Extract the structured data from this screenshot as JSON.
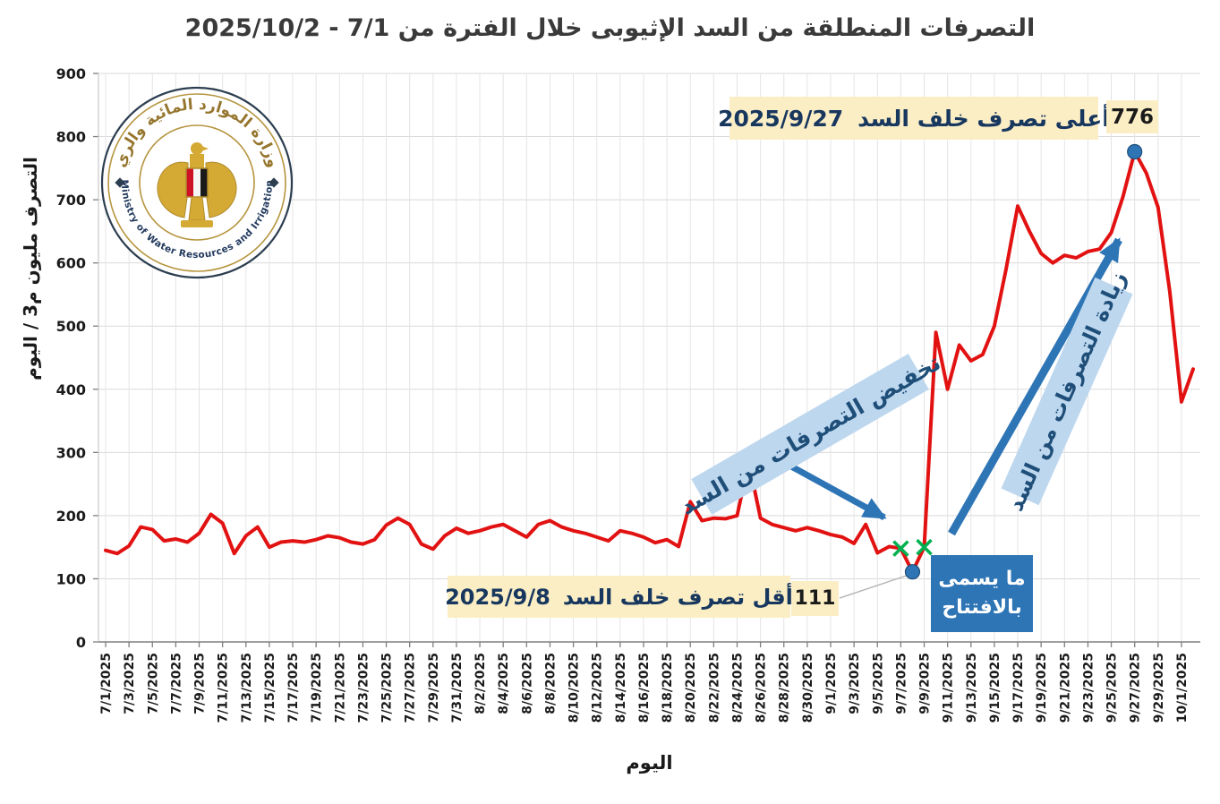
{
  "page": {
    "title": "التصرفات المنطلقة من السد الإثيوبى خلال الفترة من 7/1 - 2025/10/2"
  },
  "logo": {
    "arabic_text": "وزارة الموارد المائية والري",
    "english_text": "Ministry of Water Resources and Irrigation"
  },
  "annotations": {
    "max_label": "أعلى تصرف خلف السد",
    "max_date": "2025/9/27",
    "max_value": "776",
    "min_label": "أقل تصرف خلف السد",
    "min_date": "2025/9/8",
    "min_value": "111",
    "decrease_label": "تخفيض التصرفات من السد",
    "increase_label": "زيادة التصرفات من السد",
    "opening_label_line1": "ما يسمى",
    "opening_label_line2": "بالافتتاح"
  },
  "chart_data": {
    "type": "line",
    "title": "التصرفات المنطلقة من السد الإثيوبى خلال الفترة من 7/1 - 2025/10/2",
    "xlabel": "اليوم",
    "ylabel": "التصرف مليون م3 / اليوم",
    "ylim": [
      0,
      900
    ],
    "ytick_step": 100,
    "grid": true,
    "legend": "none",
    "line_color": "#E21212",
    "marker_color": "#2E75B6",
    "green_x_color": "#00B050",
    "arrow_color": "#2E75B6",
    "x": [
      "7/1/2025",
      "7/2/2025",
      "7/3/2025",
      "7/4/2025",
      "7/5/2025",
      "7/6/2025",
      "7/7/2025",
      "7/8/2025",
      "7/9/2025",
      "7/10/2025",
      "7/11/2025",
      "7/12/2025",
      "7/13/2025",
      "7/14/2025",
      "7/15/2025",
      "7/16/2025",
      "7/17/2025",
      "7/18/2025",
      "7/19/2025",
      "7/20/2025",
      "7/21/2025",
      "7/22/2025",
      "7/23/2025",
      "7/24/2025",
      "7/25/2025",
      "7/26/2025",
      "7/27/2025",
      "7/28/2025",
      "7/29/2025",
      "7/30/2025",
      "7/31/2025",
      "8/1/2025",
      "8/2/2025",
      "8/3/2025",
      "8/4/2025",
      "8/5/2025",
      "8/6/2025",
      "8/7/2025",
      "8/8/2025",
      "8/9/2025",
      "8/10/2025",
      "8/11/2025",
      "8/12/2025",
      "8/13/2025",
      "8/14/2025",
      "8/15/2025",
      "8/16/2025",
      "8/17/2025",
      "8/18/2025",
      "8/19/2025",
      "8/20/2025",
      "8/21/2025",
      "8/22/2025",
      "8/23/2025",
      "8/24/2025",
      "8/25/2025",
      "8/26/2025",
      "8/27/2025",
      "8/28/2025",
      "8/29/2025",
      "8/30/2025",
      "8/31/2025",
      "9/1/2025",
      "9/2/2025",
      "9/3/2025",
      "9/4/2025",
      "9/5/2025",
      "9/6/2025",
      "9/7/2025",
      "9/8/2025",
      "9/9/2025",
      "9/10/2025",
      "9/11/2025",
      "9/12/2025",
      "9/13/2025",
      "9/14/2025",
      "9/15/2025",
      "9/16/2025",
      "9/17/2025",
      "9/18/2025",
      "9/19/2025",
      "9/20/2025",
      "9/21/2025",
      "9/22/2025",
      "9/23/2025",
      "9/24/2025",
      "9/25/2025",
      "9/26/2025",
      "9/27/2025",
      "9/28/2025",
      "9/29/2025",
      "9/30/2025",
      "10/1/2025",
      "10/2/2025"
    ],
    "values": [
      145,
      140,
      152,
      182,
      178,
      160,
      163,
      158,
      172,
      202,
      188,
      140,
      168,
      182,
      150,
      158,
      160,
      158,
      162,
      168,
      165,
      158,
      155,
      162,
      185,
      196,
      186,
      155,
      147,
      168,
      180,
      172,
      176,
      182,
      186,
      176,
      166,
      186,
      192,
      182,
      176,
      172,
      166,
      160,
      176,
      172,
      166,
      157,
      162,
      151,
      222,
      192,
      196,
      195,
      200,
      285,
      196,
      186,
      181,
      176,
      181,
      176,
      170,
      166,
      156,
      186,
      141,
      151,
      148,
      111,
      150,
      490,
      400,
      470,
      445,
      455,
      500,
      590,
      690,
      650,
      615,
      600,
      612,
      608,
      618,
      622,
      648,
      705,
      776,
      742,
      688,
      555,
      380,
      432
    ],
    "max_point": {
      "date": "9/27/2025",
      "value": 776
    },
    "min_point": {
      "date": "9/8/2025",
      "value": 111
    },
    "green_x_markers": [
      {
        "date": "9/7/2025",
        "value": 148
      },
      {
        "date": "9/9/2025",
        "value": 150
      }
    ]
  }
}
